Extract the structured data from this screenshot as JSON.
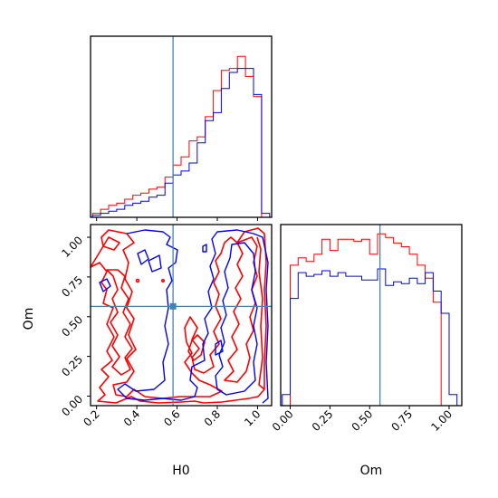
{
  "chart_data": {
    "type": "corner",
    "parameters": [
      "H0",
      "Om"
    ],
    "truth": {
      "H0": 0.58,
      "Om": 0.565
    },
    "series_colors": {
      "red": "#ff0000",
      "blue": "#0000ff"
    },
    "truth_color": "#4682b4",
    "marginals": {
      "H0": {
        "bin_edges": [
          0.18,
          0.22,
          0.26,
          0.3,
          0.34,
          0.38,
          0.42,
          0.46,
          0.5,
          0.54,
          0.58,
          0.62,
          0.66,
          0.7,
          0.74,
          0.78,
          0.82,
          0.86,
          0.9,
          0.94,
          0.98,
          1.02,
          1.06
        ],
        "red": [
          0.02,
          0.04,
          0.06,
          0.07,
          0.09,
          0.11,
          0.12,
          0.14,
          0.15,
          0.2,
          0.26,
          0.3,
          0.38,
          0.4,
          0.5,
          0.63,
          0.73,
          0.74,
          0.8,
          0.7,
          0.6,
          0.0
        ],
        "blue": [
          0.01,
          0.02,
          0.03,
          0.04,
          0.06,
          0.07,
          0.08,
          0.1,
          0.11,
          0.17,
          0.21,
          0.23,
          0.27,
          0.37,
          0.48,
          0.52,
          0.64,
          0.72,
          0.74,
          0.74,
          0.61,
          0.02
        ]
      },
      "Om": {
        "bin_edges": [
          -0.05,
          0.0,
          0.05,
          0.1,
          0.15,
          0.2,
          0.25,
          0.3,
          0.35,
          0.4,
          0.45,
          0.5,
          0.55,
          0.6,
          0.65,
          0.7,
          0.75,
          0.8,
          0.85,
          0.9,
          0.95,
          1.0,
          1.05
        ],
        "red": [
          0.0,
          0.76,
          0.8,
          0.78,
          0.82,
          0.9,
          0.84,
          0.9,
          0.9,
          0.89,
          0.9,
          0.82,
          0.93,
          0.91,
          0.88,
          0.86,
          0.82,
          0.76,
          0.69,
          0.56,
          0.0,
          0.0
        ],
        "blue": [
          0.06,
          0.58,
          0.72,
          0.7,
          0.71,
          0.73,
          0.7,
          0.72,
          0.7,
          0.7,
          0.68,
          0.68,
          0.74,
          0.65,
          0.67,
          0.66,
          0.69,
          0.66,
          0.72,
          0.62,
          0.5,
          0.06
        ]
      }
    },
    "joint": {
      "x": "H0",
      "y": "Om",
      "xlim": [
        0.17,
        1.07
      ],
      "ylim": [
        -0.06,
        1.08
      ],
      "xticks": [
        "0.2",
        "0.4",
        "0.6",
        "0.8",
        "1.0"
      ],
      "yticks": [
        "0.00",
        "0.25",
        "0.50",
        "0.75",
        "1.00"
      ]
    },
    "om_xticks": [
      "0.00",
      "0.25",
      "0.50",
      "0.75",
      "1.00"
    ],
    "xlabels": [
      "H0",
      "Om"
    ],
    "ylabel": "Om"
  }
}
